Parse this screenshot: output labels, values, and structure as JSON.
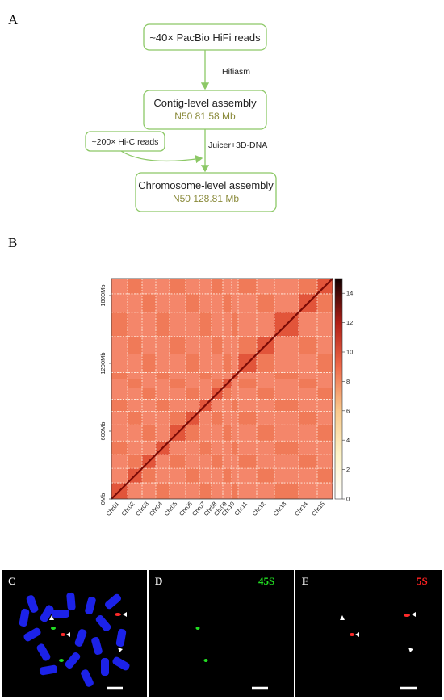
{
  "panel_a": {
    "label": "A",
    "nodes": [
      {
        "text": "~40× PacBio HiFi reads"
      },
      {
        "text": "Contig-level assembly",
        "n50": "N50 81.58 Mb"
      },
      {
        "text": "~200× Hi-C reads"
      },
      {
        "text": "Chromosome-level assembly",
        "n50": "N50 128.81 Mb"
      }
    ],
    "edges": [
      "Hifiasm",
      "Juicer+3D-DNA"
    ]
  },
  "panel_b": {
    "label": "B",
    "ylim": [
      0,
      1950
    ],
    "yticks": [
      {
        "value": 0,
        "label": "0Mb"
      },
      {
        "value": 600,
        "label": "600Mb"
      },
      {
        "value": 1200,
        "label": "1200Mb"
      },
      {
        "value": 1800,
        "label": "1800Mb"
      }
    ],
    "chromosomes": [
      "Chr01",
      "Chr02",
      "Chr03",
      "Chr04",
      "Chr05",
      "Chr06",
      "Chr07",
      "Chr08",
      "Chr09",
      "Chr10",
      "Chr11",
      "Chr12",
      "Chr13",
      "Chr14",
      "Chr15"
    ],
    "colorbar_lim": [
      0,
      15
    ],
    "colorbar_ticks": [
      0,
      2,
      4,
      6,
      8,
      10,
      12,
      14
    ]
  },
  "panel_c": {
    "label": "C"
  },
  "panel_d": {
    "label": "D",
    "probe": "45S"
  },
  "panel_e": {
    "label": "E",
    "probe": "5S"
  }
}
